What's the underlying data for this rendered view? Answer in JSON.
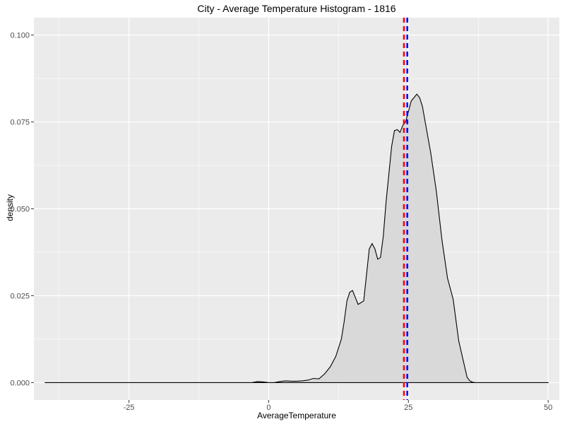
{
  "chart_data": {
    "type": "area",
    "title": "City - Average Temperature Histogram - 1816",
    "xlabel": "AverageTemperature",
    "ylabel": "density",
    "xlim": [
      -42,
      52
    ],
    "ylim": [
      -0.005,
      0.105
    ],
    "x_ticks": [
      -25,
      0,
      25,
      50
    ],
    "x_tick_labels": [
      "-25",
      "0",
      "25",
      "50"
    ],
    "y_ticks": [
      0.0,
      0.025,
      0.05,
      0.075,
      0.1
    ],
    "y_tick_labels": [
      "0.000",
      "0.025",
      "0.050",
      "0.075",
      "0.100"
    ],
    "x_minor_ticks": [
      -37.5,
      -12.5,
      12.5,
      37.5
    ],
    "y_minor_ticks": [
      0.0125,
      0.0375,
      0.0625,
      0.0875
    ],
    "grid": true,
    "series": [
      {
        "x": [
          -40,
          -30,
          -20,
          -10,
          -3,
          -2,
          -1,
          0,
          1,
          2,
          3,
          4,
          5,
          6,
          7,
          8,
          9,
          10,
          11,
          12,
          13,
          13.5,
          14,
          14.5,
          15,
          15.5,
          16,
          17,
          17.5,
          18,
          18.5,
          19,
          19.5,
          20,
          20.5,
          21,
          22,
          22.5,
          23,
          23.5,
          24,
          24.5,
          25,
          25.5,
          26,
          26.5,
          27,
          27.5,
          28,
          29,
          30,
          30.5,
          31,
          32,
          33,
          34,
          35,
          35.5,
          36,
          36.5,
          37,
          40,
          45,
          50
        ],
        "y": [
          0,
          0,
          0,
          0,
          0,
          0.0003,
          0.0002,
          0,
          0,
          0.0003,
          0.0005,
          0.0004,
          0.0004,
          0.0005,
          0.0007,
          0.0012,
          0.0011,
          0.0025,
          0.0045,
          0.0075,
          0.0125,
          0.0175,
          0.0235,
          0.026,
          0.0265,
          0.0245,
          0.0225,
          0.0235,
          0.031,
          0.0385,
          0.04,
          0.0385,
          0.0355,
          0.036,
          0.042,
          0.052,
          0.068,
          0.0725,
          0.0728,
          0.072,
          0.074,
          0.075,
          0.078,
          0.081,
          0.082,
          0.083,
          0.082,
          0.0795,
          0.075,
          0.066,
          0.055,
          0.048,
          0.041,
          0.03,
          0.024,
          0.012,
          0.005,
          0.0015,
          0.0005,
          0.0001,
          0,
          0,
          0,
          0
        ],
        "color": "#000000",
        "fill": "#d9d9d9"
      }
    ],
    "vlines": [
      {
        "x": 24.2,
        "color": "#ff0000",
        "style": "dashed"
      },
      {
        "x": 24.8,
        "color": "#0000ff",
        "style": "dashed"
      }
    ],
    "panel_color": "#ebebeb",
    "grid_color": "#ffffff"
  }
}
